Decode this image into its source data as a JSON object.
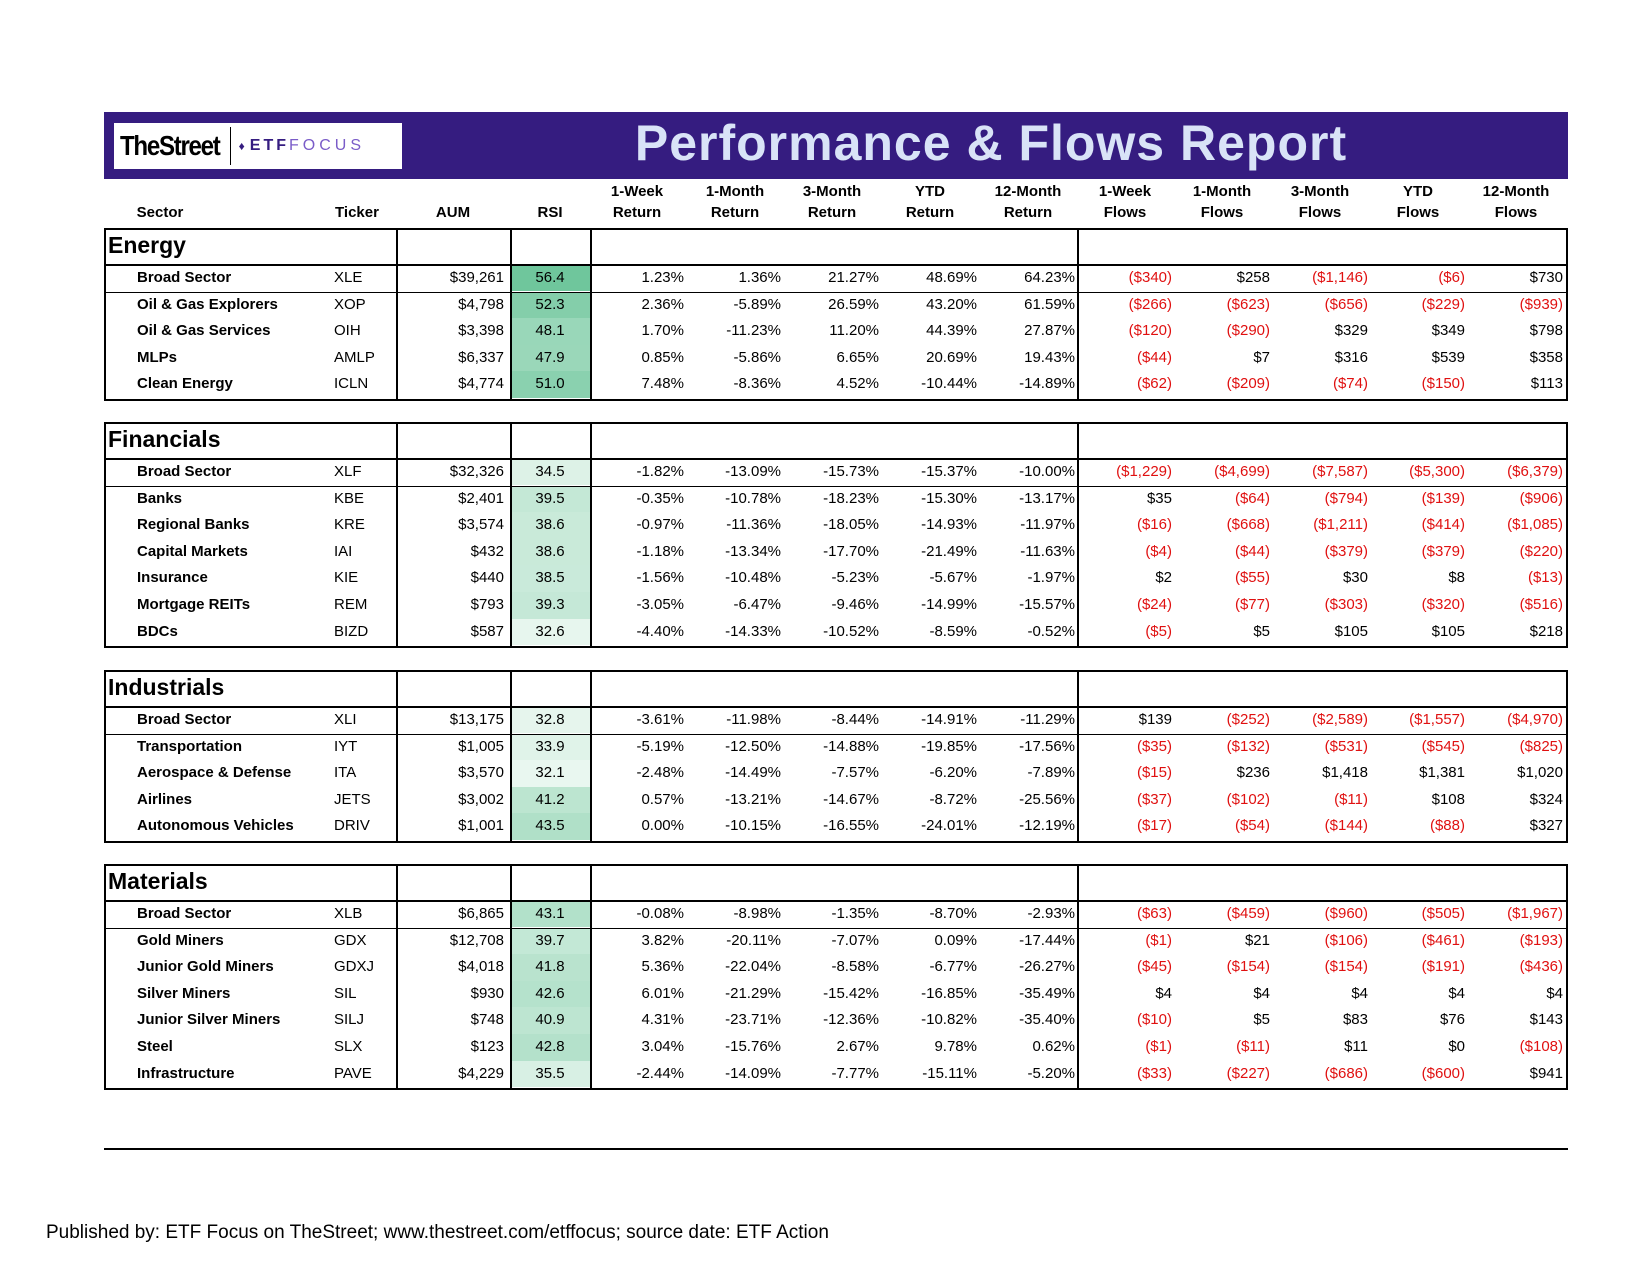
{
  "header": {
    "logo_left": "TheStreet",
    "logo_etf": "ETF",
    "logo_focus": "FOCUS",
    "title": "Performance & Flows Report"
  },
  "columns": [
    [
      "",
      "Sector"
    ],
    [
      "",
      "Ticker"
    ],
    [
      "",
      "AUM"
    ],
    [
      "",
      "RSI"
    ],
    [
      "1-Week",
      "Return"
    ],
    [
      "1-Month",
      "Return"
    ],
    [
      "3-Month",
      "Return"
    ],
    [
      "YTD",
      "Return"
    ],
    [
      "12-Month",
      "Return"
    ],
    [
      "1-Week",
      "Flows"
    ],
    [
      "1-Month",
      "Flows"
    ],
    [
      "3-Month",
      "Flows"
    ],
    [
      "YTD",
      "Flows"
    ],
    [
      "12-Month",
      "Flows"
    ]
  ],
  "colors": {
    "banner": "#351c80",
    "negative": "#e01010",
    "rsi_high": "#6cc59a",
    "rsi_low": "#eaf7f0"
  },
  "sections": [
    {
      "title": "Energy",
      "rows": [
        [
          "Broad Sector",
          "XLE",
          "$39,261",
          "56.4",
          "1.23%",
          "1.36%",
          "21.27%",
          "48.69%",
          "64.23%",
          "($340)",
          "$258",
          "($1,146)",
          "($6)",
          "$730"
        ],
        [
          "Oil & Gas Explorers",
          "XOP",
          "$4,798",
          "52.3",
          "2.36%",
          "-5.89%",
          "26.59%",
          "43.20%",
          "61.59%",
          "($266)",
          "($623)",
          "($656)",
          "($229)",
          "($939)"
        ],
        [
          "Oil & Gas Services",
          "OIH",
          "$3,398",
          "48.1",
          "1.70%",
          "-11.23%",
          "11.20%",
          "44.39%",
          "27.87%",
          "($120)",
          "($290)",
          "$329",
          "$349",
          "$798"
        ],
        [
          "MLPs",
          "AMLP",
          "$6,337",
          "47.9",
          "0.85%",
          "-5.86%",
          "6.65%",
          "20.69%",
          "19.43%",
          "($44)",
          "$7",
          "$316",
          "$539",
          "$358"
        ],
        [
          "Clean Energy",
          "ICLN",
          "$4,774",
          "51.0",
          "7.48%",
          "-8.36%",
          "4.52%",
          "-10.44%",
          "-14.89%",
          "($62)",
          "($209)",
          "($74)",
          "($150)",
          "$113"
        ]
      ]
    },
    {
      "title": "Financials",
      "rows": [
        [
          "Broad Sector",
          "XLF",
          "$32,326",
          "34.5",
          "-1.82%",
          "-13.09%",
          "-15.73%",
          "-15.37%",
          "-10.00%",
          "($1,229)",
          "($4,699)",
          "($7,587)",
          "($5,300)",
          "($6,379)"
        ],
        [
          "Banks",
          "KBE",
          "$2,401",
          "39.5",
          "-0.35%",
          "-10.78%",
          "-18.23%",
          "-15.30%",
          "-13.17%",
          "$35",
          "($64)",
          "($794)",
          "($139)",
          "($906)"
        ],
        [
          "Regional Banks",
          "KRE",
          "$3,574",
          "38.6",
          "-0.97%",
          "-11.36%",
          "-18.05%",
          "-14.93%",
          "-11.97%",
          "($16)",
          "($668)",
          "($1,211)",
          "($414)",
          "($1,085)"
        ],
        [
          "Capital Markets",
          "IAI",
          "$432",
          "38.6",
          "-1.18%",
          "-13.34%",
          "-17.70%",
          "-21.49%",
          "-11.63%",
          "($4)",
          "($44)",
          "($379)",
          "($379)",
          "($220)"
        ],
        [
          "Insurance",
          "KIE",
          "$440",
          "38.5",
          "-1.56%",
          "-10.48%",
          "-5.23%",
          "-5.67%",
          "-1.97%",
          "$2",
          "($55)",
          "$30",
          "$8",
          "($13)"
        ],
        [
          "Mortgage REITs",
          "REM",
          "$793",
          "39.3",
          "-3.05%",
          "-6.47%",
          "-9.46%",
          "-14.99%",
          "-15.57%",
          "($24)",
          "($77)",
          "($303)",
          "($320)",
          "($516)"
        ],
        [
          "BDCs",
          "BIZD",
          "$587",
          "32.6",
          "-4.40%",
          "-14.33%",
          "-10.52%",
          "-8.59%",
          "-0.52%",
          "($5)",
          "$5",
          "$105",
          "$105",
          "$218"
        ]
      ]
    },
    {
      "title": "Industrials",
      "rows": [
        [
          "Broad Sector",
          "XLI",
          "$13,175",
          "32.8",
          "-3.61%",
          "-11.98%",
          "-8.44%",
          "-14.91%",
          "-11.29%",
          "$139",
          "($252)",
          "($2,589)",
          "($1,557)",
          "($4,970)"
        ],
        [
          "Transportation",
          "IYT",
          "$1,005",
          "33.9",
          "-5.19%",
          "-12.50%",
          "-14.88%",
          "-19.85%",
          "-17.56%",
          "($35)",
          "($132)",
          "($531)",
          "($545)",
          "($825)"
        ],
        [
          "Aerospace & Defense",
          "ITA",
          "$3,570",
          "32.1",
          "-2.48%",
          "-14.49%",
          "-7.57%",
          "-6.20%",
          "-7.89%",
          "($15)",
          "$236",
          "$1,418",
          "$1,381",
          "$1,020"
        ],
        [
          "Airlines",
          "JETS",
          "$3,002",
          "41.2",
          "0.57%",
          "-13.21%",
          "-14.67%",
          "-8.72%",
          "-25.56%",
          "($37)",
          "($102)",
          "($11)",
          "$108",
          "$324"
        ],
        [
          "Autonomous Vehicles",
          "DRIV",
          "$1,001",
          "43.5",
          "0.00%",
          "-10.15%",
          "-16.55%",
          "-24.01%",
          "-12.19%",
          "($17)",
          "($54)",
          "($144)",
          "($88)",
          "$327"
        ]
      ]
    },
    {
      "title": "Materials",
      "rows": [
        [
          "Broad Sector",
          "XLB",
          "$6,865",
          "43.1",
          "-0.08%",
          "-8.98%",
          "-1.35%",
          "-8.70%",
          "-2.93%",
          "($63)",
          "($459)",
          "($960)",
          "($505)",
          "($1,967)"
        ],
        [
          "Gold Miners",
          "GDX",
          "$12,708",
          "39.7",
          "3.82%",
          "-20.11%",
          "-7.07%",
          "0.09%",
          "-17.44%",
          "($1)",
          "$21",
          "($106)",
          "($461)",
          "($193)"
        ],
        [
          "Junior Gold Miners",
          "GDXJ",
          "$4,018",
          "41.8",
          "5.36%",
          "-22.04%",
          "-8.58%",
          "-6.77%",
          "-26.27%",
          "($45)",
          "($154)",
          "($154)",
          "($191)",
          "($436)"
        ],
        [
          "Silver Miners",
          "SIL",
          "$930",
          "42.6",
          "6.01%",
          "-21.29%",
          "-15.42%",
          "-16.85%",
          "-35.49%",
          "$4",
          "$4",
          "$4",
          "$4",
          "$4"
        ],
        [
          "Junior Silver Miners",
          "SILJ",
          "$748",
          "40.9",
          "4.31%",
          "-23.71%",
          "-12.36%",
          "-10.82%",
          "-35.40%",
          "($10)",
          "$5",
          "$83",
          "$76",
          "$143"
        ],
        [
          "Steel",
          "SLX",
          "$123",
          "42.8",
          "3.04%",
          "-15.76%",
          "2.67%",
          "9.78%",
          "0.62%",
          "($1)",
          "($11)",
          "$11",
          "$0",
          "($108)"
        ],
        [
          "Infrastructure",
          "PAVE",
          "$4,229",
          "35.5",
          "-2.44%",
          "-14.09%",
          "-7.77%",
          "-15.11%",
          "-5.20%",
          "($33)",
          "($227)",
          "($686)",
          "($600)",
          "$941"
        ]
      ]
    }
  ],
  "footer": "Published by: ETF Focus on TheStreet; www.thestreet.com/etffocus; source date: ETF Action"
}
